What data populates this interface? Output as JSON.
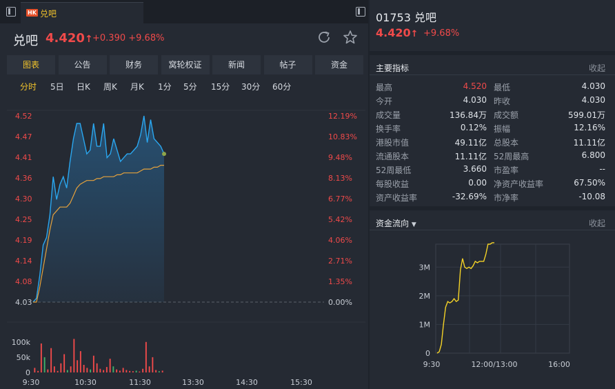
{
  "tab": {
    "badge": "HK",
    "label": "兑吧"
  },
  "header": {
    "name": "兑吧",
    "price": "4.420",
    "arrow": "↑",
    "change": "+0.390",
    "change_pct": "+9.68%"
  },
  "func_tabs": [
    "图表",
    "公告",
    "财务",
    "窝轮权证",
    "新闻",
    "帖子",
    "资金"
  ],
  "period_tabs": [
    "分时",
    "5日",
    "日K",
    "周K",
    "月K",
    "1分",
    "5分",
    "15分",
    "30分",
    "60分"
  ],
  "chart_data": [
    {
      "type": "line",
      "title": "",
      "price_ticks": [
        "4.52",
        "4.47",
        "4.41",
        "4.36",
        "4.30",
        "4.25",
        "4.19",
        "4.14",
        "4.08",
        "4.03"
      ],
      "pct_ticks": [
        "12.19%",
        "10.83%",
        "9.48%",
        "8.13%",
        "6.77%",
        "5.42%",
        "4.06%",
        "2.71%",
        "1.35%",
        "0.00%"
      ],
      "ylim": [
        4.03,
        4.52
      ],
      "time_ticks": [
        "9:30",
        "10:30",
        "11:30",
        "13:30",
        "14:30",
        "15:30"
      ],
      "series": [
        {
          "values": [
            4.03,
            4.04,
            4.1,
            4.18,
            4.2,
            4.26,
            4.36,
            4.3,
            4.34,
            4.36,
            4.33,
            4.4,
            4.46,
            4.5,
            4.5,
            4.46,
            4.42,
            4.43,
            4.5,
            4.44,
            4.44,
            4.5,
            4.41,
            4.42,
            4.46,
            4.43,
            4.4,
            4.41,
            4.42,
            4.42,
            4.43,
            4.44,
            4.47,
            4.52,
            4.45,
            4.51,
            4.46,
            4.45,
            4.44,
            4.42
          ]
        },
        {
          "values": [
            4.03,
            4.03,
            4.07,
            4.12,
            4.17,
            4.22,
            4.26,
            4.27,
            4.28,
            4.28,
            4.28,
            4.29,
            4.31,
            4.33,
            4.34,
            4.345,
            4.35,
            4.35,
            4.35,
            4.355,
            4.355,
            4.36,
            4.36,
            4.36,
            4.36,
            4.365,
            4.365,
            4.37,
            4.37,
            4.37,
            4.37,
            4.37,
            4.375,
            4.38,
            4.38,
            4.38,
            4.385,
            4.385,
            4.39,
            4.39
          ]
        }
      ]
    },
    {
      "type": "bar",
      "title": "",
      "y_ticks": [
        "100k",
        "50k",
        "0"
      ],
      "ylim": [
        0,
        120000
      ],
      "values": [
        15000,
        5000,
        95000,
        50000,
        10000,
        80000,
        20000,
        5000,
        30000,
        60000,
        8000,
        20000,
        110000,
        40000,
        70000,
        25000,
        15000,
        10000,
        55000,
        30000,
        12000,
        8000,
        18000,
        45000,
        20000,
        10000,
        6000,
        15000,
        8000,
        5000,
        4000,
        6000,
        3000,
        12000,
        100000,
        20000,
        50000,
        8000,
        4000,
        6000
      ]
    },
    {
      "type": "line",
      "title": "",
      "y_ticks": [
        "3M",
        "2M",
        "1M",
        "0"
      ],
      "ylim": [
        0,
        3800000
      ],
      "x_ticks": [
        "9:30",
        "12:00/13:00",
        "16:00"
      ],
      "values": [
        0,
        50000,
        300000,
        1000000,
        1600000,
        1800000,
        1750000,
        1800000,
        1900000,
        1800000,
        1850000,
        2900000,
        3300000,
        3000000,
        2950000,
        3000000,
        2950000,
        3050000,
        3200000,
        3150000,
        3200000,
        3200000,
        3200000,
        3450000,
        3800000,
        3800000,
        3850000,
        3850000
      ]
    }
  ],
  "right": {
    "title": "01753 兑吧",
    "price": "4.420",
    "arrow": "↑",
    "change_pct": "+9.68%",
    "metrics_title": "主要指标",
    "collapse_label": "收起",
    "metrics": [
      [
        "最高",
        "4.520",
        "最低",
        "4.030"
      ],
      [
        "今开",
        "4.030",
        "昨收",
        "4.030"
      ],
      [
        "成交量",
        "136.84万",
        "成交额",
        "599.01万"
      ],
      [
        "换手率",
        "0.12%",
        "振幅",
        "12.16%"
      ],
      [
        "港股市值",
        "49.11亿",
        "总股本",
        "11.11亿"
      ],
      [
        "流通股本",
        "11.11亿",
        "52周最高",
        "6.800"
      ],
      [
        "52周最低",
        "3.660",
        "市盈率",
        "--"
      ],
      [
        "每股收益",
        "0.00",
        "净资产收益率",
        "67.50%"
      ],
      [
        "资产收益率",
        "-32.69%",
        "市净率",
        "-10.08"
      ]
    ],
    "flow_title": "资金流向",
    "flow_collapse": "收起"
  },
  "colors": {
    "up": "#f04a4a",
    "accent": "#f0c22b",
    "price_line": "#2aa7f0",
    "avg_line": "#e6a23c",
    "flow_line": "#f5d327"
  }
}
